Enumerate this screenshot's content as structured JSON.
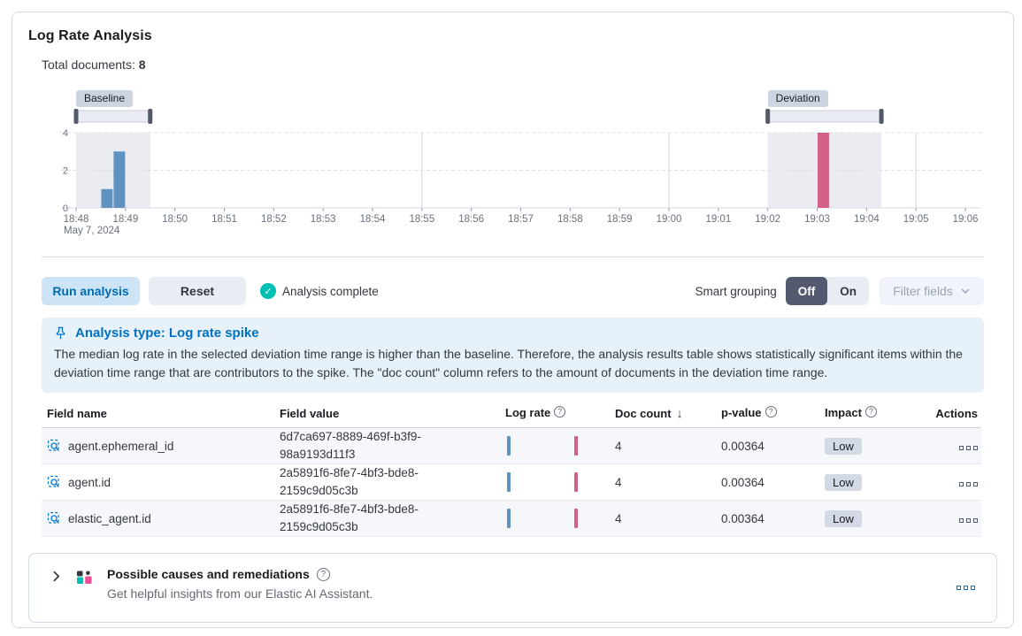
{
  "panel": {
    "title": "Log Rate Analysis"
  },
  "summary": {
    "label": "Total documents:",
    "value": "8"
  },
  "chart_data": {
    "type": "bar",
    "title": "Document count histogram with baseline and deviation brushes",
    "x_axis": {
      "ticks": [
        "18:48",
        "18:49",
        "18:50",
        "18:51",
        "18:52",
        "18:53",
        "18:54",
        "18:55",
        "18:56",
        "18:57",
        "18:58",
        "18:59",
        "19:00",
        "19:01",
        "19:02",
        "19:03",
        "19:04",
        "19:05",
        "19:06"
      ],
      "sub_label": "May 7, 2024",
      "range_minutes": [
        0,
        18
      ],
      "major_gridline_ticks": [
        7,
        12,
        17
      ]
    },
    "y_axis": {
      "ticks": [
        0,
        2,
        4
      ],
      "max": 4,
      "gridlines": [
        2,
        4
      ]
    },
    "bars": [
      {
        "series": "baseline",
        "start": 0.5,
        "end": 0.75,
        "value": 1
      },
      {
        "series": "baseline",
        "start": 0.75,
        "end": 1.0,
        "value": 3
      },
      {
        "series": "deviation",
        "start": 15.0,
        "end": 15.25,
        "value": 4
      }
    ],
    "brushes": [
      {
        "label": "Baseline",
        "start": 0.0,
        "end": 1.5
      },
      {
        "label": "Deviation",
        "start": 14.0,
        "end": 16.3
      }
    ],
    "colors": {
      "baseline_bar": "#6092C0",
      "deviation_bar": "#D36086",
      "selection_band": "rgba(104,121,166,0.14)",
      "brush_track": "#E9EDF3",
      "brush_handle": "#535966",
      "gridline": "#DCE1E8",
      "axis_line": "#D3DAE6",
      "axis_text": "#69707D"
    }
  },
  "toolbar": {
    "run_label": "Run analysis",
    "reset_label": "Reset",
    "status_label": "Analysis complete",
    "smart_grouping_label": "Smart grouping",
    "off_label": "Off",
    "on_label": "On",
    "filter_fields_label": "Filter fields"
  },
  "callout": {
    "title": "Analysis type: Log rate spike",
    "body": "The median log rate in the selected deviation time range is higher than the baseline. Therefore, the analysis results table shows statistically significant items within the deviation time range that are contributors to the spike. The \"doc count\" column refers to the amount of documents in the deviation time range."
  },
  "table": {
    "columns": {
      "field_name": "Field name",
      "field_value": "Field value",
      "log_rate": "Log rate",
      "doc_count": "Doc count",
      "p_value": "p-value",
      "impact": "Impact",
      "actions": "Actions"
    },
    "rows": [
      {
        "field_name": "agent.ephemeral_id",
        "field_value": "6d7ca697-8889-469f-b3f9-98a9193d11f3",
        "doc_count": "4",
        "p_value": "0.00364",
        "impact": "Low"
      },
      {
        "field_name": "agent.id",
        "field_value": "2a5891f6-8fe7-4bf3-bde8-2159c9d05c3b",
        "doc_count": "4",
        "p_value": "0.00364",
        "impact": "Low"
      },
      {
        "field_name": "elastic_agent.id",
        "field_value": "2a5891f6-8fe7-4bf3-bde8-2159c9d05c3b",
        "doc_count": "4",
        "p_value": "0.00364",
        "impact": "Low"
      }
    ]
  },
  "ai_panel": {
    "title": "Possible causes and remediations",
    "subtitle": "Get helpful insights from our Elastic AI Assistant."
  },
  "icons": {
    "check": "✓",
    "help": "?",
    "sort_desc": "↓"
  }
}
